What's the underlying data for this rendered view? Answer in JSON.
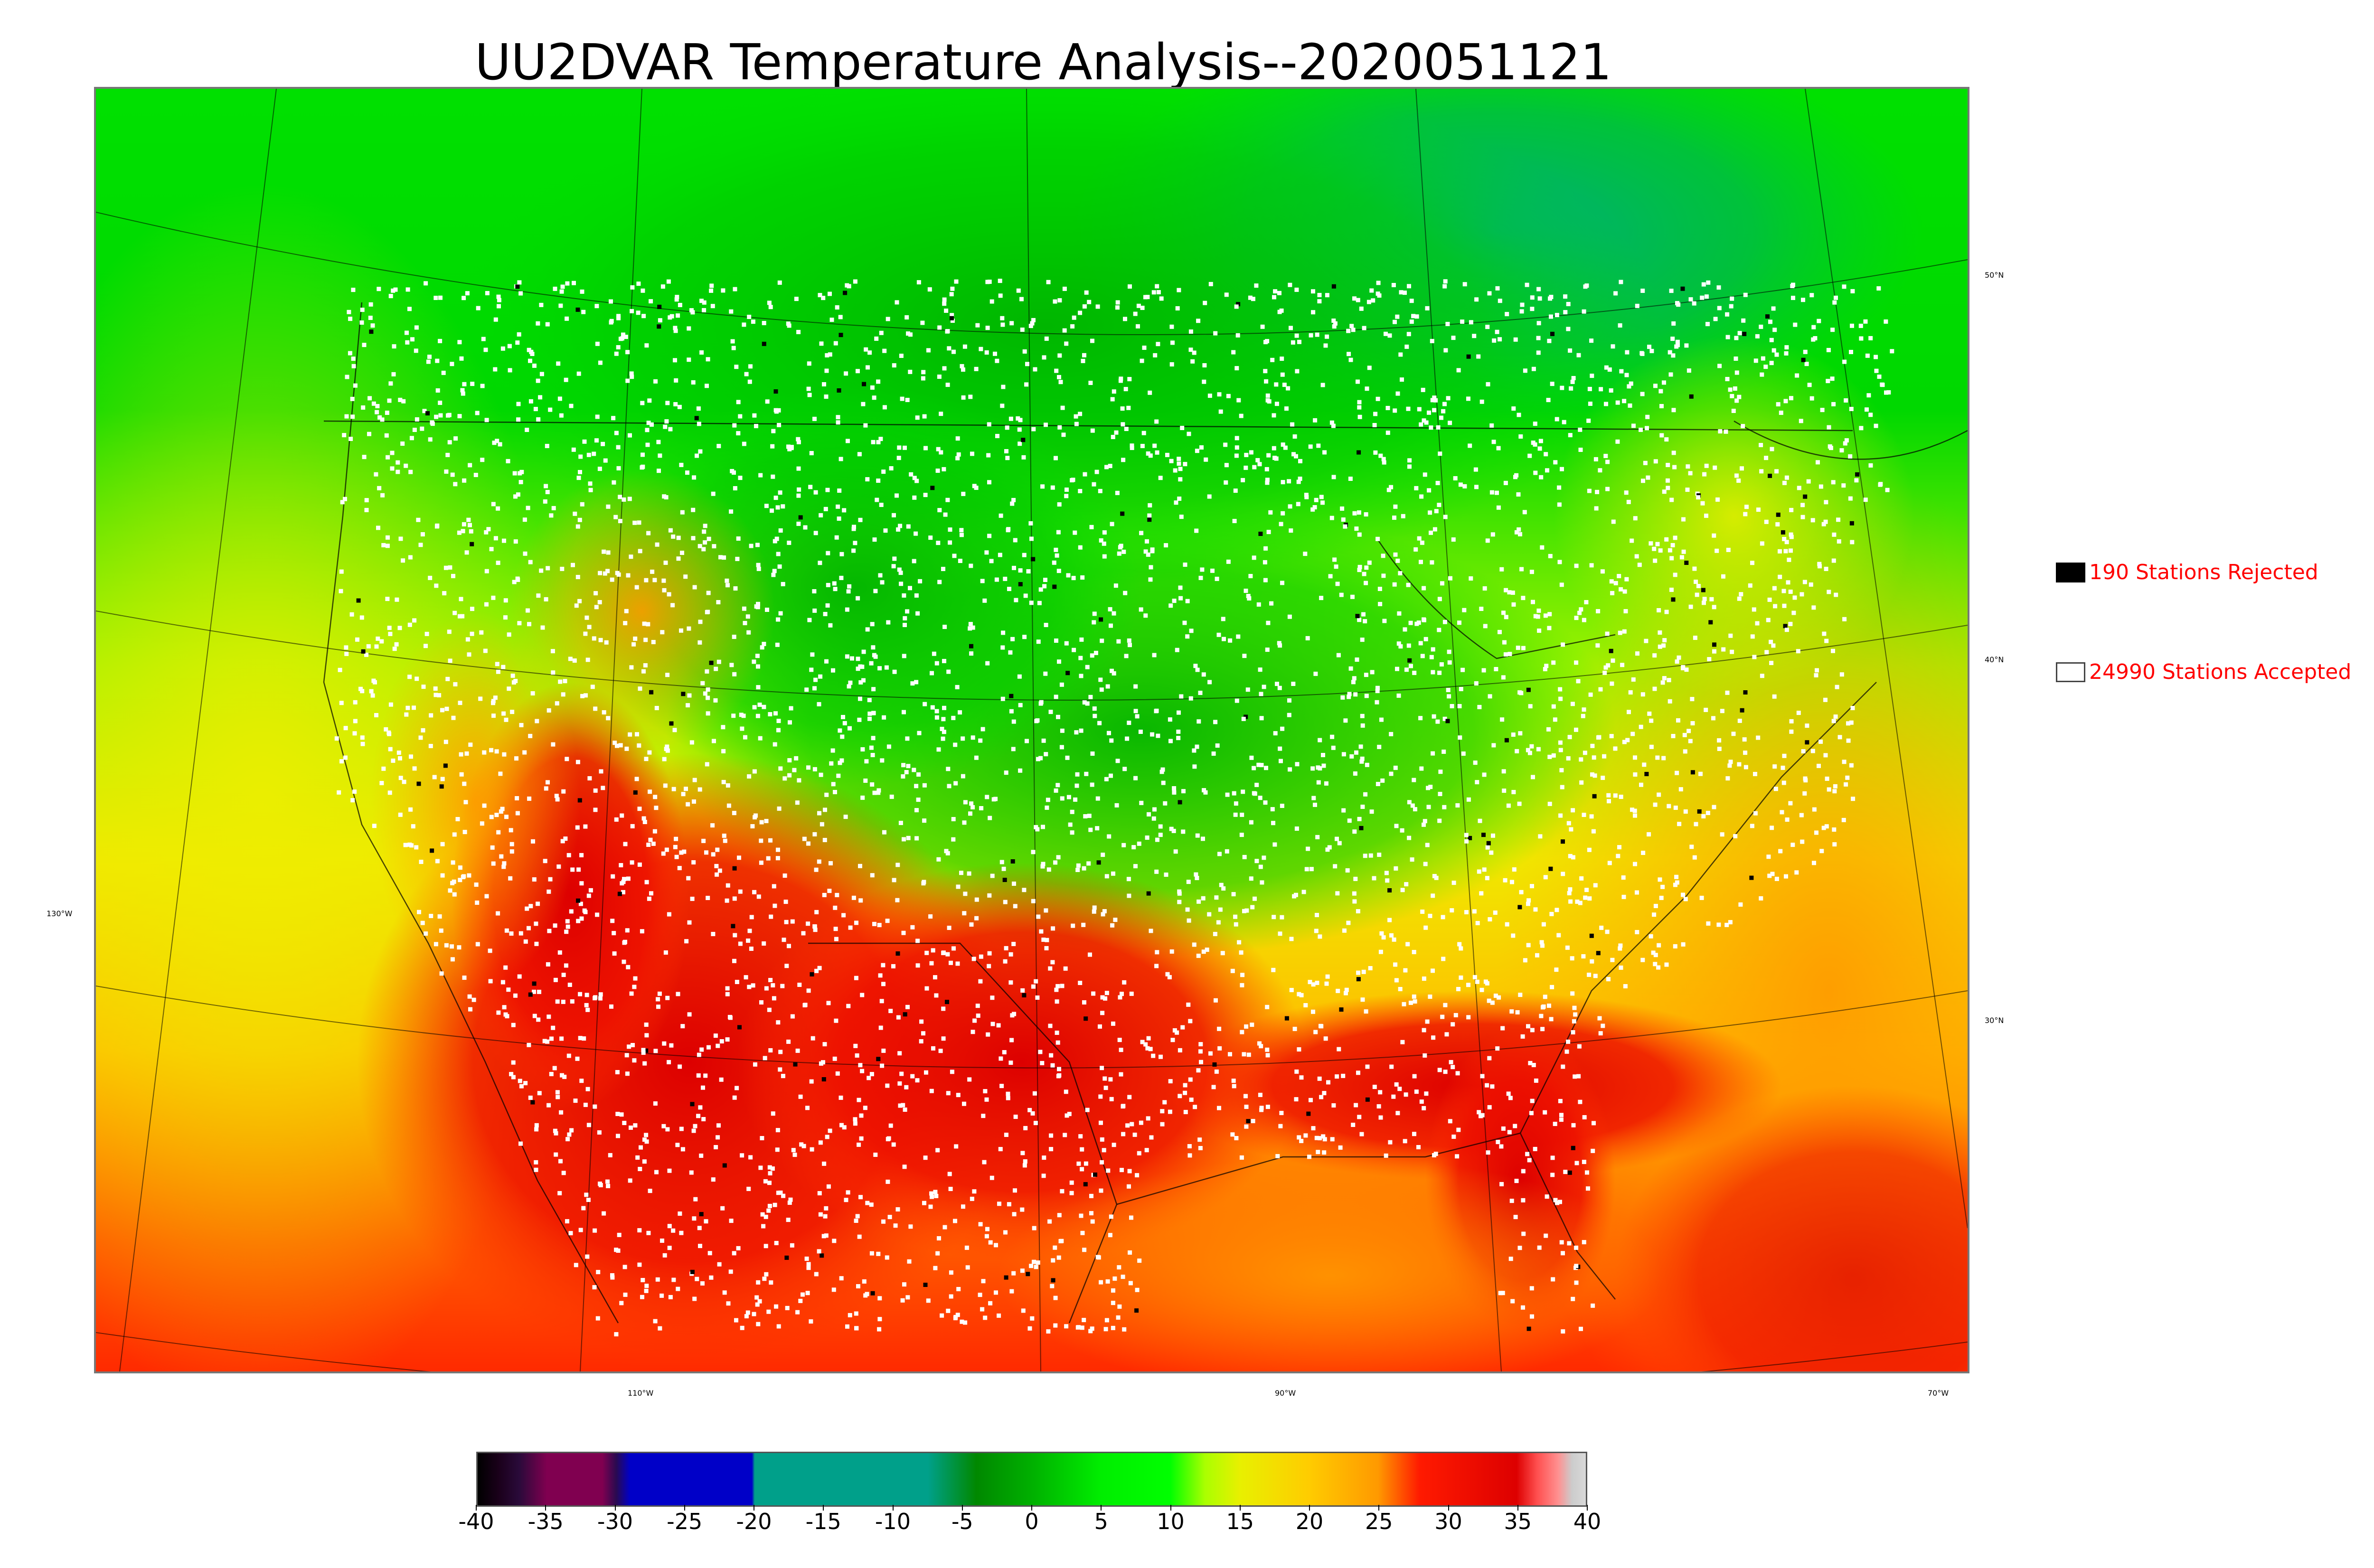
{
  "title": "UU2DVAR Temperature Analysis--2020051121",
  "lon_labels": [
    "130°W",
    "110°W",
    "90°W",
    "70°W"
  ],
  "lat_labels": [
    "50°N",
    "40°N",
    "30°N"
  ],
  "legend": {
    "rejected": {
      "label": "190 Stations Rejected",
      "swatch_color": "#000000"
    },
    "accepted": {
      "label": "24990 Stations Accepted",
      "swatch_color": "#ffffff"
    }
  },
  "colorbar": {
    "ticks": [
      "-40",
      "-35",
      "-30",
      "-25",
      "-20",
      "-15",
      "-10",
      "-5",
      "0",
      "5",
      "10",
      "15",
      "20",
      "25",
      "30",
      "35",
      "40"
    ],
    "min": -40,
    "max": 40,
    "stops": [
      {
        "v": -40,
        "c": "#000000"
      },
      {
        "v": -38.5,
        "c": "#1a001a"
      },
      {
        "v": -37,
        "c": "#2a0a3a"
      },
      {
        "v": -35,
        "c": "#800050"
      },
      {
        "v": -31,
        "c": "#800050"
      },
      {
        "v": -30,
        "c": "#2a0a50"
      },
      {
        "v": -29,
        "c": "#0000c8"
      },
      {
        "v": -20.2,
        "c": "#0000c8"
      },
      {
        "v": -20,
        "c": "#00a08a"
      },
      {
        "v": -7.5,
        "c": "#00a08a"
      },
      {
        "v": -4,
        "c": "#008800"
      },
      {
        "v": 0,
        "c": "#00b000"
      },
      {
        "v": 5,
        "c": "#00ee00"
      },
      {
        "v": 10,
        "c": "#00ff00"
      },
      {
        "v": 12.5,
        "c": "#aaff00"
      },
      {
        "v": 15,
        "c": "#e8f000"
      },
      {
        "v": 20,
        "c": "#ffcc00"
      },
      {
        "v": 25,
        "c": "#ff9900"
      },
      {
        "v": 28,
        "c": "#ff1a00"
      },
      {
        "v": 35,
        "c": "#dd0000"
      },
      {
        "v": 36.5,
        "c": "#ff5050"
      },
      {
        "v": 38,
        "c": "#ff9090"
      },
      {
        "v": 39,
        "c": "#cccccc"
      },
      {
        "v": 40,
        "c": "#d9d9d9"
      }
    ]
  }
}
